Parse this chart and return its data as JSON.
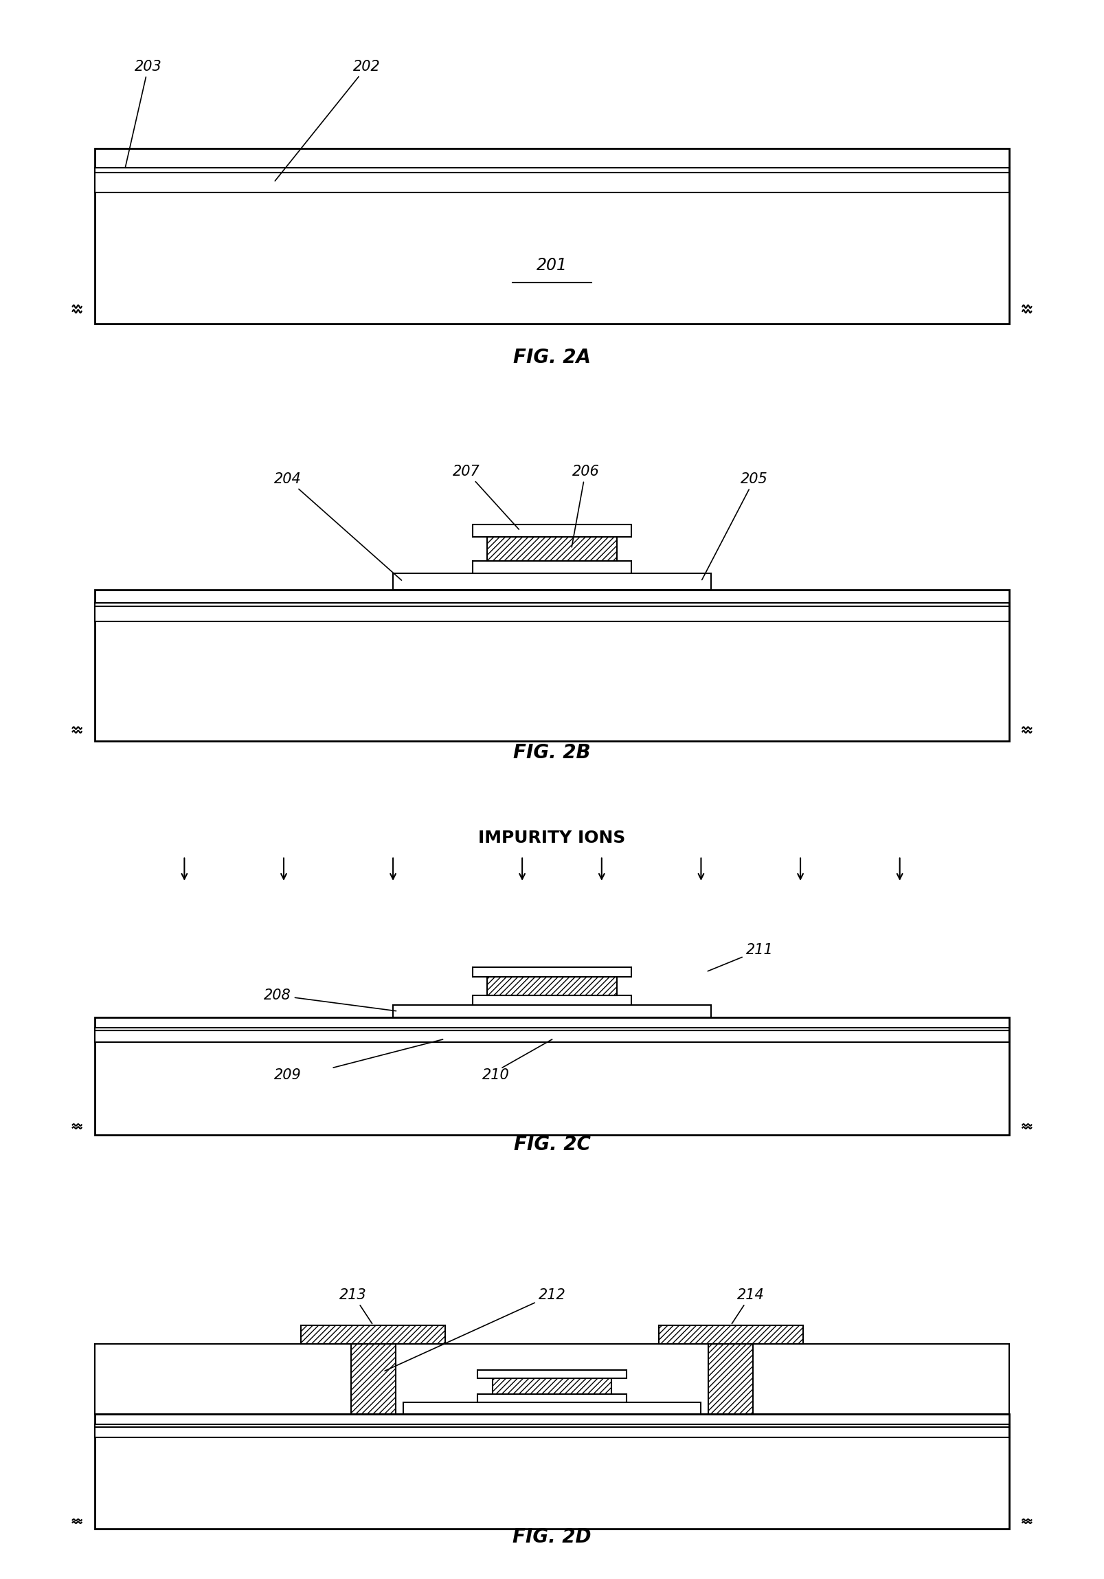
{
  "fig_labels": [
    "FIG. 2A",
    "FIG. 2B",
    "FIG. 2C",
    "FIG. 2D"
  ],
  "background_color": "#ffffff",
  "line_color": "#000000",
  "font_size_label": 20,
  "font_size_ref": 15,
  "impurity_ions_text": "IMPURITY IONS",
  "lw_main": 2.0,
  "lw_thin": 1.5
}
